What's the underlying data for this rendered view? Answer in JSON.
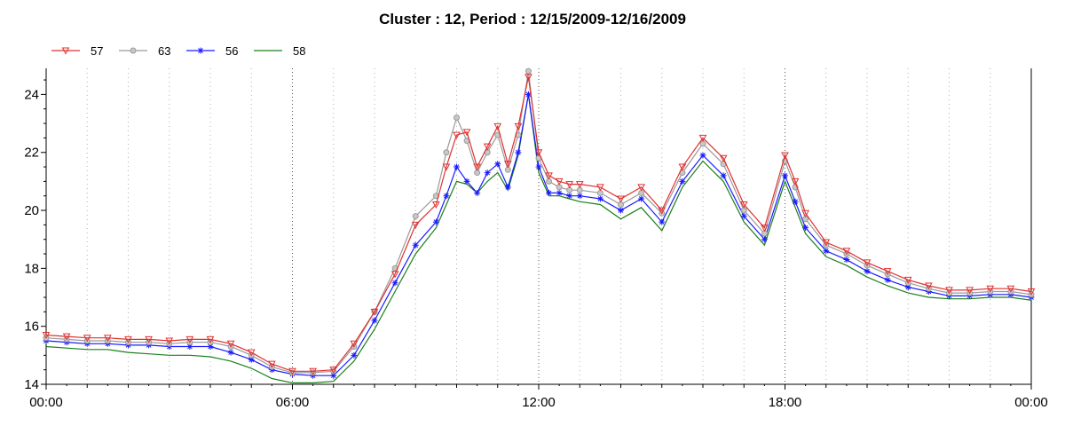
{
  "chart_data": {
    "type": "line",
    "title": "Cluster : 12, Period : 12/15/2009-12/16/2009",
    "xlabel": "",
    "ylabel": "",
    "x_unit": "hours since 00:00",
    "xlim": [
      0,
      24
    ],
    "ylim": [
      14,
      24.9
    ],
    "x_ticks": [
      {
        "value": 0,
        "label": "00:00"
      },
      {
        "value": 6,
        "label": "06:00"
      },
      {
        "value": 12,
        "label": "12:00"
      },
      {
        "value": 18,
        "label": "18:00"
      },
      {
        "value": 24,
        "label": "00:00"
      }
    ],
    "y_ticks": [
      {
        "value": 14,
        "label": "14"
      },
      {
        "value": 16,
        "label": "16"
      },
      {
        "value": 18,
        "label": "18"
      },
      {
        "value": 20,
        "label": "20"
      },
      {
        "value": 22,
        "label": "22"
      },
      {
        "value": 24,
        "label": "24"
      }
    ],
    "grid": "dotted",
    "legend_position": "top-left",
    "x": [
      0,
      0.5,
      1,
      1.5,
      2,
      2.5,
      3,
      3.5,
      4,
      4.5,
      5,
      5.5,
      6,
      6.5,
      7,
      7.5,
      8,
      8.5,
      9,
      9.5,
      9.75,
      10,
      10.25,
      10.5,
      10.75,
      11,
      11.25,
      11.5,
      11.75,
      12,
      12.25,
      12.5,
      12.75,
      13,
      13.5,
      14,
      14.5,
      15,
      15.5,
      16,
      16.5,
      17,
      17.5,
      18,
      18.25,
      18.5,
      19,
      19.5,
      20,
      20.5,
      21,
      21.5,
      22,
      22.5,
      23,
      23.5,
      24
    ],
    "series": [
      {
        "name": "57",
        "color": "#e03030",
        "marker": "triangle-down",
        "values": [
          15.7,
          15.65,
          15.6,
          15.6,
          15.55,
          15.55,
          15.5,
          15.55,
          15.55,
          15.4,
          15.1,
          14.7,
          14.45,
          14.45,
          14.5,
          15.4,
          16.5,
          17.8,
          19.5,
          20.2,
          21.5,
          22.6,
          22.7,
          21.5,
          22.2,
          22.9,
          21.6,
          22.9,
          24.6,
          22.0,
          21.2,
          21.0,
          20.9,
          20.9,
          20.8,
          20.4,
          20.8,
          20.0,
          21.5,
          22.5,
          21.8,
          20.2,
          19.4,
          21.9,
          21.0,
          19.9,
          18.9,
          18.6,
          18.2,
          17.9,
          17.6,
          17.4,
          17.25,
          17.25,
          17.3,
          17.3,
          17.2
        ]
      },
      {
        "name": "63",
        "color": "#9a9a9a",
        "marker": "circle",
        "values": [
          15.6,
          15.55,
          15.5,
          15.5,
          15.45,
          15.45,
          15.4,
          15.45,
          15.45,
          15.3,
          15.0,
          14.6,
          14.4,
          14.4,
          14.45,
          15.3,
          16.5,
          18.0,
          19.8,
          20.5,
          22.0,
          23.2,
          22.4,
          21.3,
          22.0,
          22.6,
          21.4,
          22.6,
          24.8,
          21.8,
          21.0,
          20.8,
          20.7,
          20.7,
          20.6,
          20.2,
          20.6,
          19.9,
          21.3,
          22.3,
          21.6,
          20.0,
          19.2,
          21.7,
          20.8,
          19.7,
          18.8,
          18.5,
          18.1,
          17.8,
          17.5,
          17.3,
          17.15,
          17.15,
          17.2,
          17.2,
          17.1
        ]
      },
      {
        "name": "56",
        "color": "#1a1aff",
        "marker": "star",
        "values": [
          15.5,
          15.45,
          15.4,
          15.4,
          15.35,
          15.35,
          15.3,
          15.3,
          15.3,
          15.1,
          14.85,
          14.5,
          14.35,
          14.3,
          14.3,
          15.0,
          16.2,
          17.5,
          18.8,
          19.6,
          20.5,
          21.5,
          21.0,
          20.6,
          21.3,
          21.6,
          20.8,
          22.0,
          24.0,
          21.5,
          20.6,
          20.6,
          20.5,
          20.5,
          20.4,
          20.0,
          20.4,
          19.6,
          21.0,
          21.9,
          21.2,
          19.8,
          19.0,
          21.2,
          20.3,
          19.4,
          18.6,
          18.3,
          17.9,
          17.6,
          17.35,
          17.2,
          17.05,
          17.05,
          17.1,
          17.1,
          17.0
        ]
      },
      {
        "name": "58",
        "color": "#1a7f1a",
        "marker": "none",
        "values": [
          15.3,
          15.25,
          15.2,
          15.2,
          15.1,
          15.05,
          15.0,
          15.0,
          14.95,
          14.8,
          14.55,
          14.2,
          14.05,
          14.05,
          14.1,
          14.8,
          15.9,
          17.2,
          18.5,
          19.4,
          20.2,
          21.0,
          20.9,
          20.6,
          21.0,
          21.3,
          20.7,
          21.9,
          24.0,
          21.3,
          20.5,
          20.5,
          20.4,
          20.3,
          20.2,
          19.7,
          20.1,
          19.3,
          20.8,
          21.7,
          21.0,
          19.6,
          18.8,
          21.0,
          20.1,
          19.2,
          18.4,
          18.1,
          17.7,
          17.4,
          17.15,
          17.0,
          16.95,
          16.95,
          17.0,
          17.0,
          16.9
        ]
      }
    ]
  }
}
